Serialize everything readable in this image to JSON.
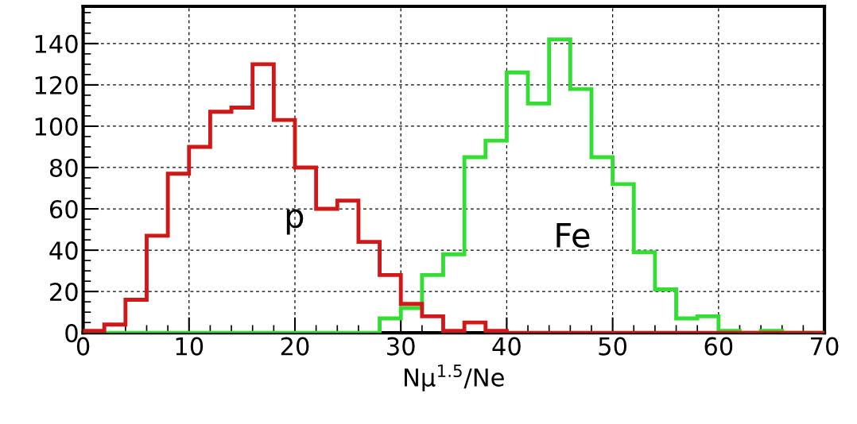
{
  "chart_data": {
    "type": "histogram",
    "xlabel": "Nμ$^{1.5}$/Ne",
    "bins": [
      0,
      2,
      4,
      6,
      8,
      10,
      12,
      14,
      16,
      18,
      20,
      22,
      24,
      26,
      28,
      30,
      32,
      34,
      36,
      38,
      40,
      42,
      44,
      46,
      48,
      50,
      52,
      54,
      56,
      58,
      60,
      62,
      64,
      66,
      68,
      70
    ],
    "series": [
      {
        "name": "p",
        "color": "#d01818",
        "values": [
          1,
          4,
          16,
          47,
          77,
          90,
          107,
          109,
          130,
          103,
          80,
          60,
          64,
          44,
          28,
          14,
          8,
          1,
          5,
          1,
          0,
          0,
          0,
          0,
          0,
          0,
          0,
          0,
          0,
          0,
          0,
          0,
          0,
          0,
          0
        ]
      },
      {
        "name": "Fe",
        "color": "#33dd33",
        "values": [
          0,
          0,
          0,
          0,
          0,
          0,
          0,
          0,
          0,
          0,
          0,
          0,
          0,
          0,
          7,
          12,
          28,
          38,
          85,
          93,
          126,
          111,
          142,
          118,
          85,
          72,
          39,
          21,
          7,
          8,
          1,
          0,
          1,
          0,
          0
        ]
      }
    ],
    "xlim": [
      0,
      70
    ],
    "xticks": [
      0,
      10,
      20,
      30,
      40,
      50,
      60,
      70
    ],
    "ylim": [
      0,
      158
    ],
    "yticks": [
      0,
      20,
      40,
      60,
      80,
      100,
      120,
      140
    ],
    "grid": true,
    "legend": false
  }
}
